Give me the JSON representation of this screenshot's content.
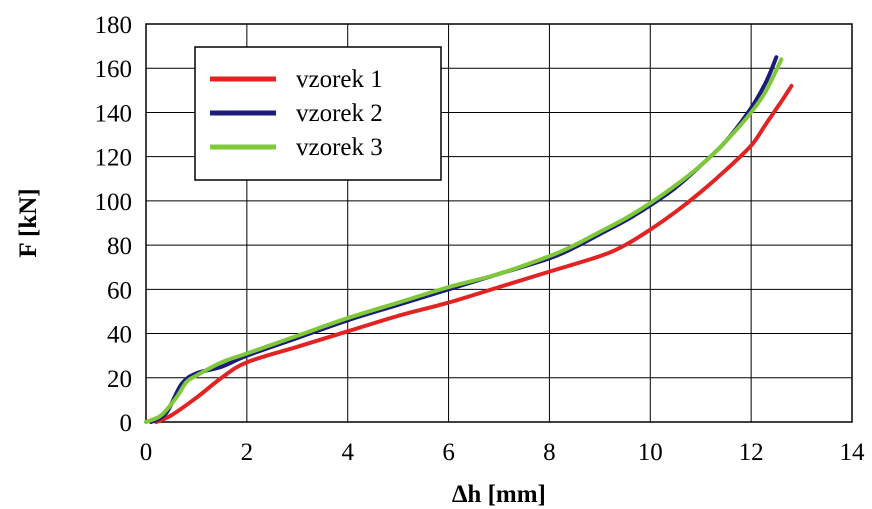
{
  "chart_data": {
    "type": "line",
    "xlabel": "∆h [mm]",
    "ylabel": "F [kN]",
    "xlim": [
      0,
      14
    ],
    "ylim": [
      0,
      180
    ],
    "xticks": [
      "0",
      "2",
      "4",
      "6",
      "8",
      "10",
      "12",
      "14"
    ],
    "yticks": [
      "0",
      "20",
      "40",
      "60",
      "80",
      "100",
      "120",
      "140",
      "160",
      "180"
    ],
    "grid": true,
    "legend_position": "top-left",
    "series": [
      {
        "name": "vzorek 1",
        "color": "#e12323",
        "points": [
          [
            0.2,
            0
          ],
          [
            0.5,
            3
          ],
          [
            1.0,
            11
          ],
          [
            1.5,
            20
          ],
          [
            2.0,
            27
          ],
          [
            3.0,
            34
          ],
          [
            4.0,
            41
          ],
          [
            5.0,
            48
          ],
          [
            6.0,
            54
          ],
          [
            7.0,
            61
          ],
          [
            8.0,
            68
          ],
          [
            9.0,
            75
          ],
          [
            9.5,
            80
          ],
          [
            10.0,
            87
          ],
          [
            10.5,
            95
          ],
          [
            11.0,
            104
          ],
          [
            11.5,
            114
          ],
          [
            12.0,
            125
          ],
          [
            12.3,
            135
          ],
          [
            12.6,
            145
          ],
          [
            12.8,
            152
          ]
        ]
      },
      {
        "name": "vzorek 2",
        "color": "#1b1b7a",
        "points": [
          [
            0.1,
            0
          ],
          [
            0.4,
            4
          ],
          [
            0.7,
            17
          ],
          [
            1.0,
            22
          ],
          [
            1.5,
            25
          ],
          [
            2.0,
            30
          ],
          [
            3.0,
            38
          ],
          [
            4.0,
            46
          ],
          [
            5.0,
            53
          ],
          [
            6.0,
            60
          ],
          [
            7.0,
            67
          ],
          [
            8.0,
            74
          ],
          [
            8.5,
            79
          ],
          [
            9.0,
            85
          ],
          [
            9.5,
            91
          ],
          [
            10.0,
            98
          ],
          [
            10.5,
            106
          ],
          [
            11.0,
            116
          ],
          [
            11.5,
            127
          ],
          [
            12.0,
            142
          ],
          [
            12.3,
            154
          ],
          [
            12.5,
            165
          ]
        ]
      },
      {
        "name": "vzorek 3",
        "color": "#7ec83a",
        "points": [
          [
            0.0,
            0
          ],
          [
            0.3,
            3
          ],
          [
            0.6,
            11
          ],
          [
            0.8,
            18
          ],
          [
            1.0,
            21
          ],
          [
            1.5,
            27
          ],
          [
            2.0,
            31
          ],
          [
            3.0,
            39
          ],
          [
            4.0,
            47
          ],
          [
            5.0,
            54
          ],
          [
            6.0,
            61
          ],
          [
            7.0,
            67
          ],
          [
            8.0,
            75
          ],
          [
            8.5,
            80
          ],
          [
            9.0,
            86
          ],
          [
            9.5,
            92
          ],
          [
            10.0,
            99
          ],
          [
            10.5,
            107
          ],
          [
            11.0,
            116
          ],
          [
            11.5,
            127
          ],
          [
            12.0,
            140
          ],
          [
            12.3,
            150
          ],
          [
            12.6,
            164
          ]
        ]
      }
    ]
  }
}
